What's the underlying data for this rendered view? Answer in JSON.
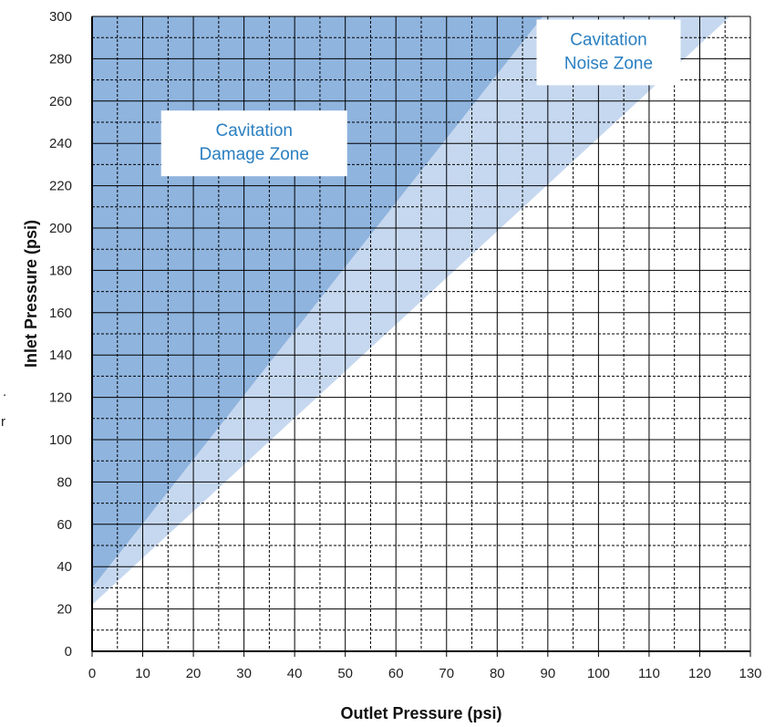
{
  "chart_data": {
    "type": "area",
    "xlabel": "Outlet Pressure  (psi)",
    "ylabel": "Inlet Pressure  (psi)",
    "xlim": [
      0,
      130
    ],
    "ylim": [
      0,
      300
    ],
    "x_ticks": [
      "0",
      "10",
      "20",
      "30",
      "40",
      "50",
      "60",
      "70",
      "80",
      "90",
      "100",
      "110",
      "120",
      "130"
    ],
    "y_ticks": [
      "0",
      "20",
      "40",
      "60",
      "80",
      "100",
      "120",
      "140",
      "160",
      "180",
      "200",
      "220",
      "240",
      "260",
      "280",
      "300"
    ],
    "grid": {
      "major": "solid",
      "minor": "dashed",
      "x_minor_step": 5,
      "y_minor_step": 10
    },
    "series": [
      {
        "name": "Cavitation Damage Zone",
        "lower_boundary": [
          [
            0,
            30
          ],
          [
            89,
            300
          ]
        ],
        "color": "#8fb4de"
      },
      {
        "name": "Cavitation Noise Zone",
        "lower_boundary": [
          [
            0,
            22
          ],
          [
            126,
            300
          ]
        ],
        "color": "#c6d8ef"
      }
    ],
    "annotations": [
      {
        "lines": [
          "Cavitation",
          "Damage Zone"
        ],
        "x": 32,
        "y": 240
      },
      {
        "lines": [
          "Cavitation",
          "Noise Zone"
        ],
        "x": 102,
        "y": 283
      }
    ],
    "colors": {
      "damage_zone": "#8fb4de",
      "noise_zone": "#c6d8ef",
      "label_text": "#2a7fc1",
      "grid": "#000000"
    }
  },
  "margin_text": [
    ".",
    "r"
  ]
}
